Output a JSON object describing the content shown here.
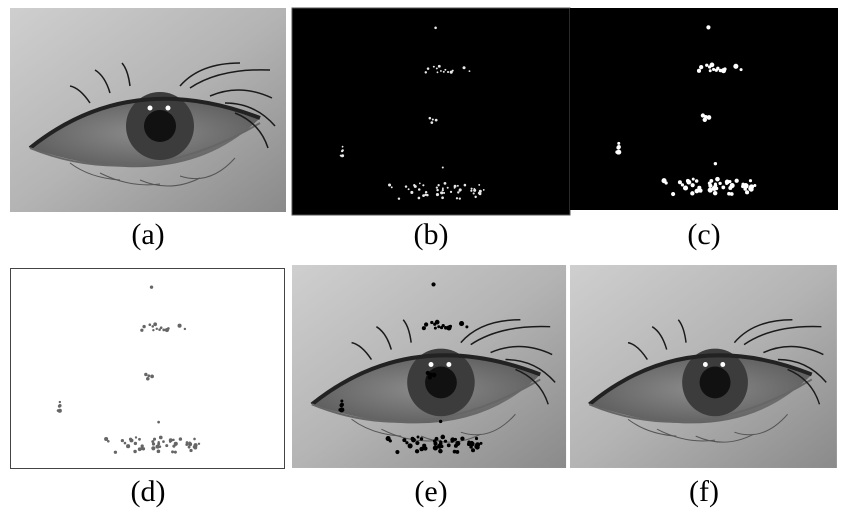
{
  "figure": {
    "panels": [
      {
        "label": "(a)"
      },
      {
        "label": "(b)"
      },
      {
        "label": "(c)"
      },
      {
        "label": "(d)"
      },
      {
        "label": "(e)"
      },
      {
        "label": "(f)"
      }
    ]
  }
}
